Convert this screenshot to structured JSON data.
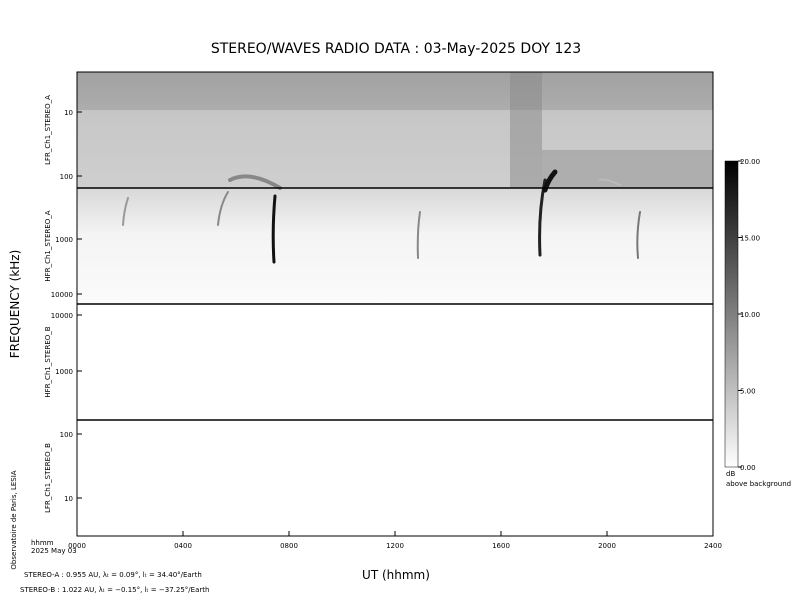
{
  "header": {
    "title": "STEREO/WAVES  RADIO  DATA : 03-May-2025  DOY 123"
  },
  "y_axis_label": "FREQUENCY (kHz)",
  "x_axis_label": "UT (hhmm)",
  "x_ticks": [
    "0000",
    "0400",
    "0800",
    "1200",
    "1600",
    "2000",
    "2400"
  ],
  "time_note": [
    "hhmm",
    "2025 May 03"
  ],
  "credit": "Observatoire de Paris, LESIA",
  "panels": [
    {
      "label": "LFR_Ch1_STEREO_A",
      "ticks": [
        "10",
        "100"
      ]
    },
    {
      "label": "HFR_Ch1_STEREO_A",
      "ticks": [
        "1000",
        "10000"
      ]
    },
    {
      "label": "HFR_Ch1_STEREO_B",
      "ticks": [
        "10000",
        "1000"
      ]
    },
    {
      "label": "LFR_Ch1_STEREO_B",
      "ticks": [
        "100",
        "10"
      ]
    }
  ],
  "colorbar": {
    "ticks": [
      "0.00",
      "5.00",
      "10.00",
      "15.00",
      "20.00"
    ],
    "unit": "dB",
    "caption": "above background"
  },
  "footer": [
    "STEREO-A : 0.955 AU, λₜ = 0.09°, lₜ = 34.40°/Earth",
    "STEREO-B : 1.022 AU, λₜ = −0.15°, lₜ = −37.25°/Earth"
  ]
}
